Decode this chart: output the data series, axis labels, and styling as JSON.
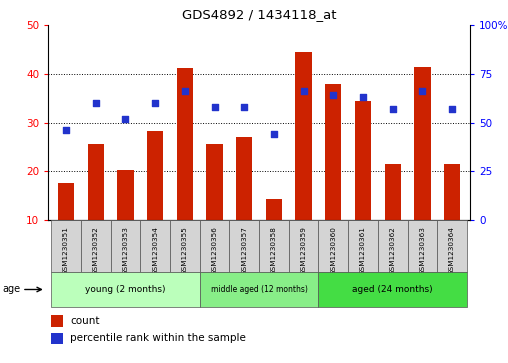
{
  "title": "GDS4892 / 1434118_at",
  "categories": [
    "GSM1230351",
    "GSM1230352",
    "GSM1230353",
    "GSM1230354",
    "GSM1230355",
    "GSM1230356",
    "GSM1230357",
    "GSM1230358",
    "GSM1230359",
    "GSM1230360",
    "GSM1230361",
    "GSM1230362",
    "GSM1230363",
    "GSM1230364"
  ],
  "counts": [
    17.5,
    25.5,
    20.2,
    28.2,
    41.2,
    25.5,
    27.0,
    14.2,
    44.5,
    38.0,
    34.5,
    21.5,
    41.5,
    21.5
  ],
  "percentiles": [
    46.0,
    60.0,
    52.0,
    60.0,
    66.0,
    58.0,
    58.0,
    44.0,
    66.0,
    64.0,
    63.0,
    57.0,
    66.0,
    57.0
  ],
  "ylim_left": [
    10,
    50
  ],
  "ylim_right": [
    0,
    100
  ],
  "bar_color": "#cc2200",
  "dot_color": "#2233cc",
  "groups": [
    {
      "label": "young (2 months)",
      "start": 0,
      "end": 5,
      "color": "#bbffbb"
    },
    {
      "label": "middle aged (12 months)",
      "start": 5,
      "end": 9,
      "color": "#88ee88"
    },
    {
      "label": "aged (24 months)",
      "start": 9,
      "end": 14,
      "color": "#44dd44"
    }
  ],
  "legend_count_label": "count",
  "legend_pct_label": "percentile rank within the sample",
  "age_label": "age",
  "grid_yticks_left": [
    10,
    20,
    30,
    40,
    50
  ],
  "grid_yticks_right": [
    0,
    25,
    50,
    75,
    100
  ],
  "right_tick_labels": [
    "0",
    "25",
    "50",
    "75",
    "100%"
  ]
}
